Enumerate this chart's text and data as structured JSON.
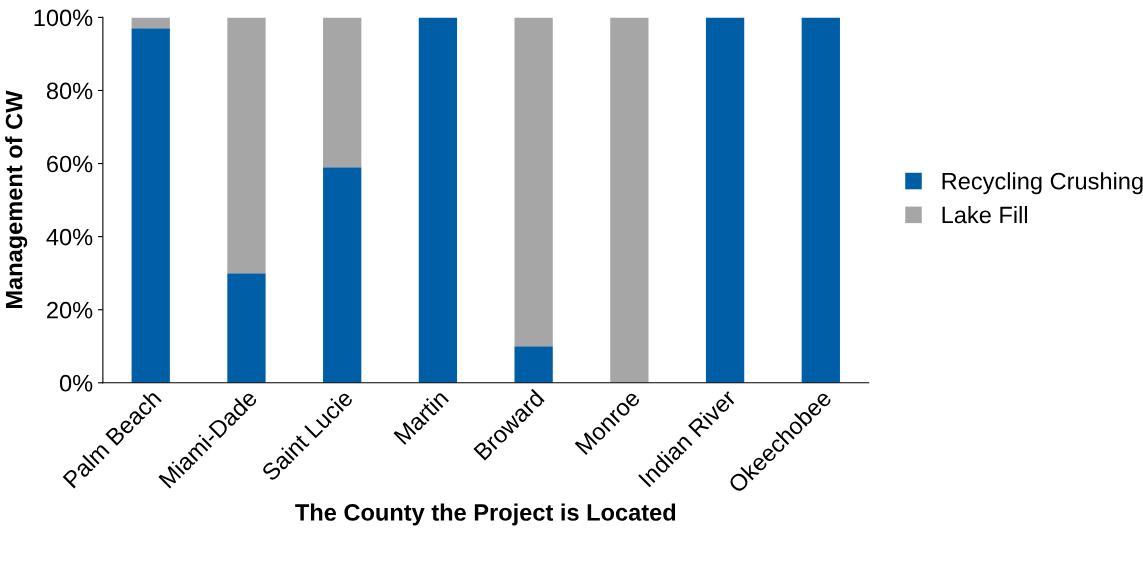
{
  "chart_data": {
    "type": "bar",
    "stacked": true,
    "xlabel": "The County the Project is Located",
    "ylabel": "Management of CW",
    "categories": [
      "Palm Beach",
      "Miami-Dade",
      "Saint Lucie",
      "Martin",
      "Broward",
      "Monroe",
      "Indian River",
      "Okeechobee"
    ],
    "series": [
      {
        "name": "Recycling Crushing",
        "color": "#005ea6",
        "values": [
          97,
          30,
          59,
          100,
          10,
          0,
          100,
          100
        ]
      },
      {
        "name": "Lake Fill",
        "color": "#a6a6a6",
        "values": [
          3,
          70,
          41,
          0,
          90,
          100,
          0,
          0
        ]
      }
    ],
    "ylim": [
      0,
      100
    ],
    "yticks": [
      {
        "value": 0,
        "label": "0%"
      },
      {
        "value": 20,
        "label": "20%"
      },
      {
        "value": 40,
        "label": "40%"
      },
      {
        "value": 60,
        "label": "60%"
      },
      {
        "value": 80,
        "label": "80%"
      },
      {
        "value": 100,
        "label": "100%"
      }
    ],
    "grid": false,
    "legend": "right"
  }
}
